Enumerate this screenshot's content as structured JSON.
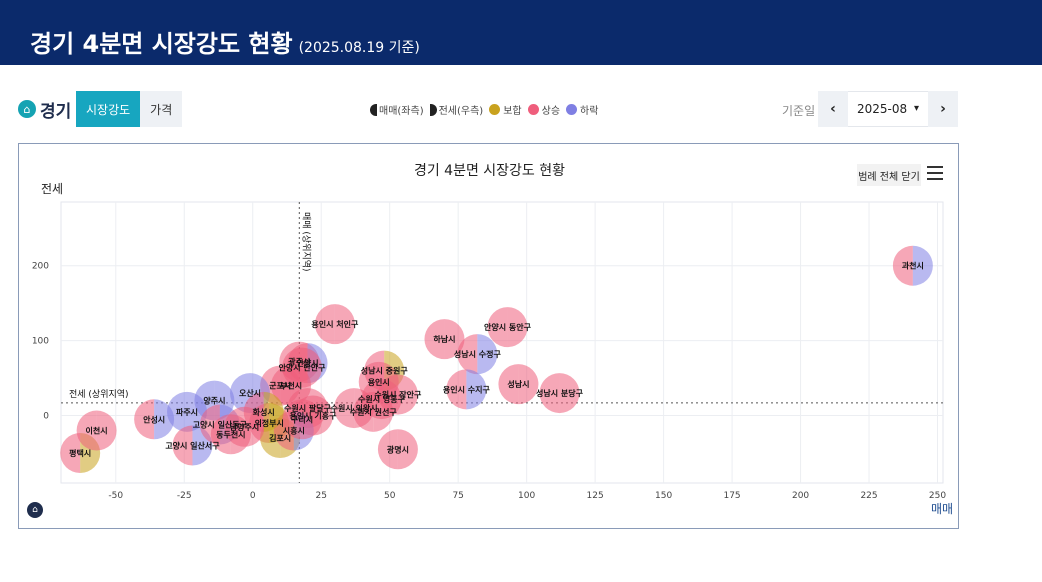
{
  "banner": {
    "title": "경기 4분면 시장강도 현황",
    "subtitle": "(2025.08.19 기준)"
  },
  "toolbar": {
    "region": "경기",
    "tabs": [
      {
        "label": "시장강도"
      },
      {
        "label": "가격"
      }
    ],
    "legend": [
      {
        "label": "매매(좌측)",
        "shape": "half-left"
      },
      {
        "label": "전세(우측)",
        "shape": "half-right"
      },
      {
        "label": "보합",
        "color": "#c9a21e"
      },
      {
        "label": "상승",
        "color": "#ef5e7c"
      },
      {
        "label": "하락",
        "color": "#7f7fe3"
      }
    ],
    "date_label": "기준일",
    "date_value": "2025-08"
  },
  "chart_data": {
    "type": "bubble",
    "title": "경기 4분면 시장강도 현황",
    "xlabel": "매매",
    "ylabel": "전세",
    "xlim": [
      -70,
      252
    ],
    "ylim": [
      -90,
      285
    ],
    "xticks": [
      -50,
      -25,
      0,
      25,
      50,
      75,
      100,
      125,
      150,
      175,
      200,
      225,
      250
    ],
    "yticks": [
      0,
      100,
      200
    ],
    "grid": true,
    "legend_button": "범례 전체 닫기",
    "reference_lines": [
      {
        "axis": "x",
        "value": 17,
        "label": "매매 (상위지역)"
      },
      {
        "axis": "y",
        "value": 17,
        "label": "전세 (상위지역)"
      }
    ],
    "colors": {
      "up": "#ef5e7c",
      "down": "#7f7fe3",
      "flat": "#c9a21e"
    },
    "points": [
      {
        "name": "과천시",
        "x": 241,
        "y": 200,
        "sale": "up",
        "jeonse": "down"
      },
      {
        "name": "용인시 처인구",
        "x": 30,
        "y": 122,
        "sale": "up",
        "jeonse": "up"
      },
      {
        "name": "하남시",
        "x": 70,
        "y": 102,
        "sale": "up",
        "jeonse": "up"
      },
      {
        "name": "안양시 동안구",
        "x": 93,
        "y": 118,
        "sale": "up",
        "jeonse": "up"
      },
      {
        "name": "성남시 수정구",
        "x": 82,
        "y": 82,
        "sale": "up",
        "jeonse": "down"
      },
      {
        "name": "성남시",
        "x": 97,
        "y": 42,
        "sale": "up",
        "jeonse": "up"
      },
      {
        "name": "용인시 수지구",
        "x": 78,
        "y": 35,
        "sale": "up",
        "jeonse": "down"
      },
      {
        "name": "성남시 분당구",
        "x": 112,
        "y": 30,
        "sale": "up",
        "jeonse": "up"
      },
      {
        "name": "성남시 중원구",
        "x": 48,
        "y": 60,
        "sale": "up",
        "jeonse": "flat"
      },
      {
        "name": "용인시",
        "x": 46,
        "y": 45,
        "sale": "up",
        "jeonse": "up"
      },
      {
        "name": "수원시 장안구",
        "x": 53,
        "y": 28,
        "sale": "up",
        "jeonse": "up"
      },
      {
        "name": "수원시 영통구",
        "x": 47,
        "y": 22,
        "sale": "up",
        "jeonse": "up"
      },
      {
        "name": "수원시 의왕시",
        "x": 37,
        "y": 10,
        "sale": "up",
        "jeonse": "up"
      },
      {
        "name": "수원시 권선구",
        "x": 44,
        "y": 5,
        "sale": "up",
        "jeonse": "up"
      },
      {
        "name": "광명시",
        "x": 53,
        "y": -45,
        "sale": "up",
        "jeonse": "up"
      },
      {
        "name": "광주시",
        "x": 17,
        "y": 72,
        "sale": "up",
        "jeonse": "up"
      },
      {
        "name": "안양시",
        "x": 20,
        "y": 70,
        "sale": "up",
        "jeonse": "down"
      },
      {
        "name": "안양시 만안구",
        "x": 18,
        "y": 64,
        "sale": "up",
        "jeonse": "up"
      },
      {
        "name": "군포시",
        "x": 10,
        "y": 40,
        "sale": "up",
        "jeonse": "up"
      },
      {
        "name": "부천시",
        "x": 14,
        "y": 40,
        "sale": "up",
        "jeonse": "up"
      },
      {
        "name": "오산시",
        "x": -1,
        "y": 30,
        "sale": "down",
        "jeonse": "down"
      },
      {
        "name": "평택시",
        "x": -63,
        "y": -50,
        "sale": "up",
        "jeonse": "flat"
      },
      {
        "name": "이천시",
        "x": -57,
        "y": -20,
        "sale": "up",
        "jeonse": "up"
      },
      {
        "name": "안성시",
        "x": -36,
        "y": -5,
        "sale": "up",
        "jeonse": "down"
      },
      {
        "name": "파주시",
        "x": -24,
        "y": 5,
        "sale": "down",
        "jeonse": "down"
      },
      {
        "name": "양주시",
        "x": -14,
        "y": 20,
        "sale": "down",
        "jeonse": "down"
      },
      {
        "name": "고양시 일산서구",
        "x": -22,
        "y": -40,
        "sale": "up",
        "jeonse": "down"
      },
      {
        "name": "고양시 일산동구",
        "x": -12,
        "y": -12,
        "sale": "up",
        "jeonse": "down"
      },
      {
        "name": "수원시 팔달구",
        "x": 20,
        "y": 10,
        "sale": "up",
        "jeonse": "up"
      },
      {
        "name": "용인시 기흥구",
        "x": 22,
        "y": 0,
        "sale": "up",
        "jeonse": "up"
      },
      {
        "name": "의정부시",
        "x": 6,
        "y": -10,
        "sale": "up",
        "jeonse": "flat"
      },
      {
        "name": "김포시",
        "x": 10,
        "y": -30,
        "sale": "flat",
        "jeonse": "flat"
      },
      {
        "name": "시흥시",
        "x": 15,
        "y": -20,
        "sale": "up",
        "jeonse": "down"
      },
      {
        "name": "구리시",
        "x": 18,
        "y": -5,
        "sale": "up",
        "jeonse": "up"
      },
      {
        "name": "남양주시",
        "x": -3,
        "y": -15,
        "sale": "up",
        "jeonse": "up"
      },
      {
        "name": "화성시",
        "x": 4,
        "y": 5,
        "sale": "up",
        "jeonse": "flat"
      },
      {
        "name": "동두천시",
        "x": -8,
        "y": -25,
        "sale": "up",
        "jeonse": "up"
      }
    ]
  }
}
